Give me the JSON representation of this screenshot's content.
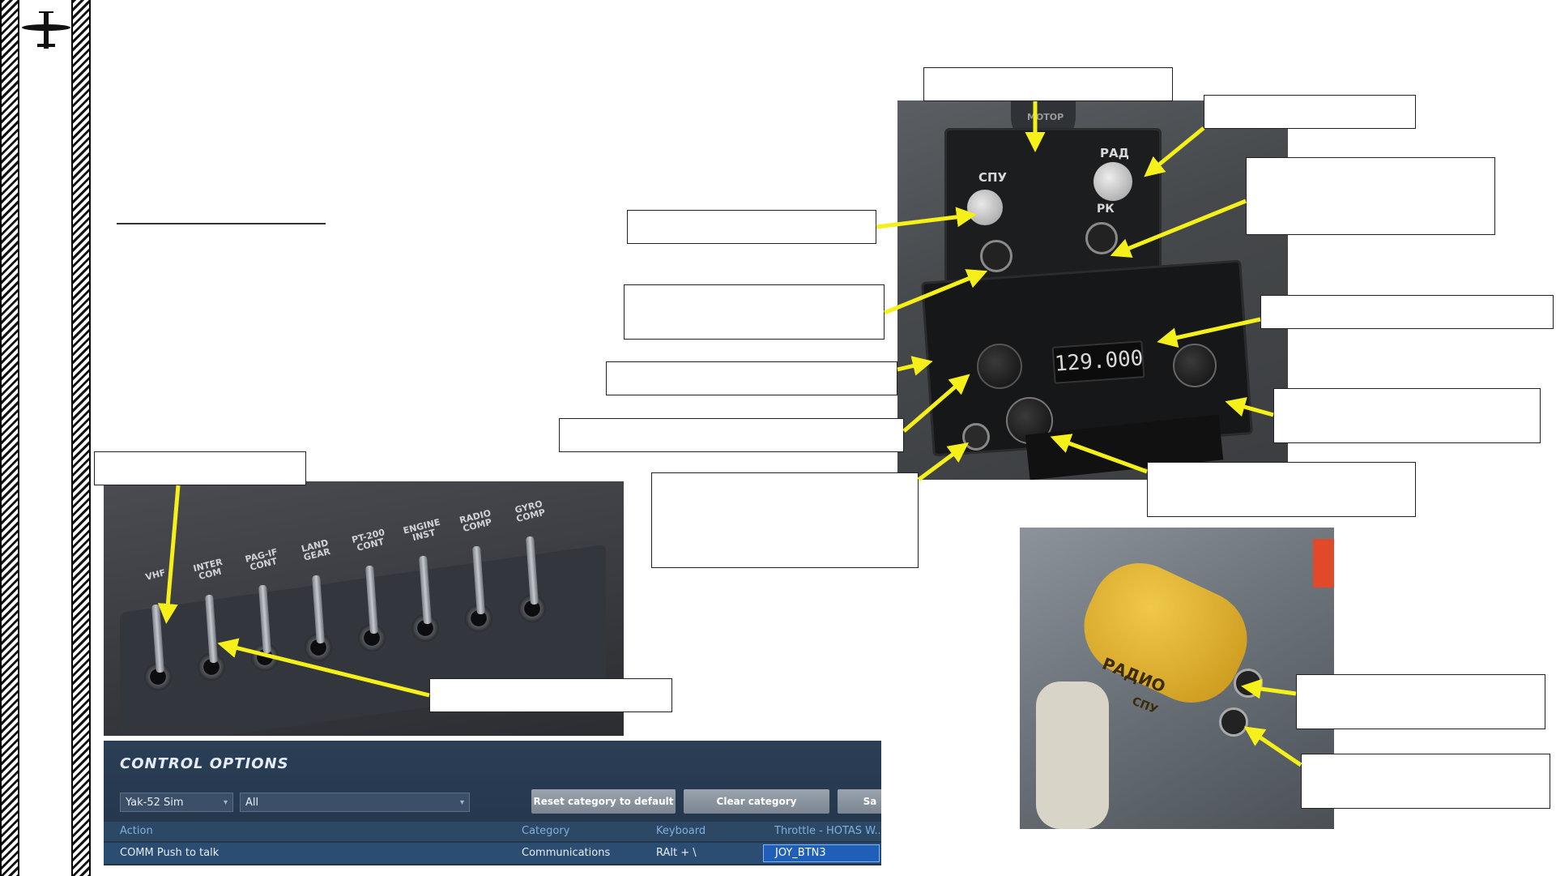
{
  "colors": {
    "arrow": "#f5ef1a",
    "hatch": "#111111",
    "panel_bg": "#22344a",
    "selected_binding": "#1f5fb8"
  },
  "sidebar": {
    "icon": "airplane-icon"
  },
  "cockpit_labels": {
    "sp_u": "СПУ",
    "rad": "РАД",
    "rk": "РК",
    "motor": "МОТОР",
    "frequency": "129.000",
    "radio_handle": "РАДИО",
    "radio_handle_sub": "СПУ",
    "breakers": [
      "VHF",
      "INTER COM",
      "PAG-IF CONT",
      "LAND GEAR",
      "PT-200 CONT",
      "ENGINE INST",
      "RADIO COMP",
      "GYRO COMP"
    ]
  },
  "control_options": {
    "title": "CONTROL OPTIONS",
    "aircraft_select": "Yak-52 Sim",
    "category_select": "All",
    "buttons": {
      "reset": "Reset category to default",
      "clear": "Clear category",
      "save": "Sa"
    },
    "columns": {
      "action": "Action",
      "category": "Category",
      "keyboard": "Keyboard",
      "throttle": "Throttle - HOTAS W..."
    },
    "row": {
      "action": "COMM Push to talk",
      "category": "Communications",
      "keyboard": "RAlt + \\",
      "throttle": "JOY_BTN3"
    }
  }
}
